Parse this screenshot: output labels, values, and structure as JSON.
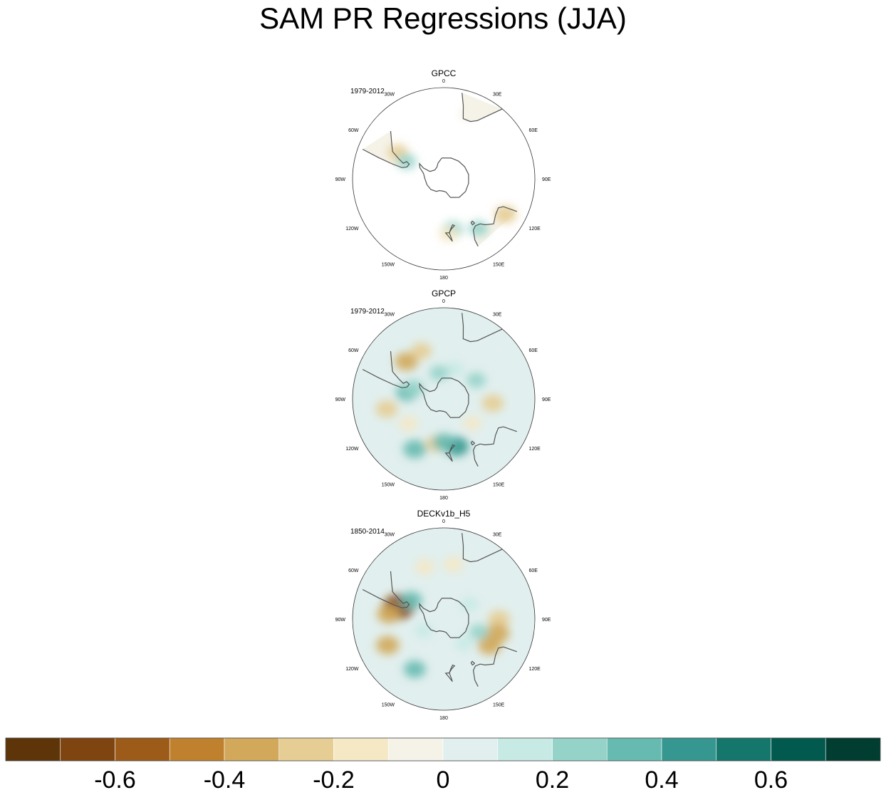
{
  "title": "SAM PR Regressions (JJA)",
  "chart_data": {
    "type": "polar-contour-map",
    "projection": "south-polar-stereographic",
    "longitude_labels": [
      "0",
      "30E",
      "60E",
      "90E",
      "120E",
      "150E",
      "180",
      "150W",
      "120W",
      "90W",
      "60W",
      "30W"
    ],
    "panels": [
      {
        "name": "GPCC",
        "period": "1979-2012",
        "coverage": "land-only",
        "anomalies": [
          {
            "lon": -60,
            "lat": -42,
            "value": -0.25
          },
          {
            "lon": -65,
            "lat": -52,
            "value": 0.2
          },
          {
            "lon": 20,
            "lat": -30,
            "value": -0.1
          },
          {
            "lon": 120,
            "lat": -28,
            "value": -0.3
          },
          {
            "lon": 145,
            "lat": -36,
            "value": 0.2
          },
          {
            "lon": 170,
            "lat": -43,
            "value": 0.25
          },
          {
            "lon": 175,
            "lat": -40,
            "value": -0.2
          }
        ]
      },
      {
        "name": "GPCP",
        "period": "1979-2012",
        "coverage": "global",
        "anomalies": [
          {
            "lon": -45,
            "lat": -42,
            "value": -0.35
          },
          {
            "lon": -25,
            "lat": -42,
            "value": -0.25
          },
          {
            "lon": -80,
            "lat": -55,
            "value": 0.3
          },
          {
            "lon": -70,
            "lat": -60,
            "value": 0.25
          },
          {
            "lon": -100,
            "lat": -38,
            "value": -0.3
          },
          {
            "lon": -125,
            "lat": -50,
            "value": -0.2
          },
          {
            "lon": -150,
            "lat": -38,
            "value": 0.35
          },
          {
            "lon": -170,
            "lat": -48,
            "value": -0.25
          },
          {
            "lon": 165,
            "lat": -45,
            "value": 0.4
          },
          {
            "lon": 180,
            "lat": -50,
            "value": 0.3
          },
          {
            "lon": 95,
            "lat": -45,
            "value": -0.3
          },
          {
            "lon": 60,
            "lat": -55,
            "value": 0.2
          },
          {
            "lon": 20,
            "lat": -60,
            "value": 0.15
          },
          {
            "lon": -10,
            "lat": -65,
            "value": 0.2
          },
          {
            "lon": 130,
            "lat": -55,
            "value": -0.15
          }
        ]
      },
      {
        "name": "DECKv1b_H5",
        "period": "1850-2014",
        "coverage": "global",
        "anomalies": [
          {
            "lon": -75,
            "lat": -47,
            "value": -0.7
          },
          {
            "lon": -85,
            "lat": -40,
            "value": -0.35
          },
          {
            "lon": -115,
            "lat": -35,
            "value": -0.35
          },
          {
            "lon": -20,
            "lat": -40,
            "value": -0.2
          },
          {
            "lon": 10,
            "lat": -40,
            "value": -0.2
          },
          {
            "lon": 90,
            "lat": -40,
            "value": -0.3
          },
          {
            "lon": 105,
            "lat": -40,
            "value": -0.4
          },
          {
            "lon": 120,
            "lat": -42,
            "value": -0.35
          },
          {
            "lon": 110,
            "lat": -55,
            "value": 0.2
          },
          {
            "lon": 140,
            "lat": -60,
            "value": 0.15
          },
          {
            "lon": -150,
            "lat": -38,
            "value": 0.3
          },
          {
            "lon": -60,
            "lat": -55,
            "value": 0.3
          },
          {
            "lon": 60,
            "lat": -62,
            "value": 0.15
          },
          {
            "lon": -120,
            "lat": -68,
            "value": 0.15
          }
        ]
      }
    ],
    "colorbar": {
      "levels": [
        -0.7,
        -0.6,
        -0.5,
        -0.4,
        -0.3,
        -0.2,
        -0.1,
        0,
        0.1,
        0.2,
        0.3,
        0.4,
        0.5,
        0.6,
        0.7
      ],
      "colors": [
        "#5e3509",
        "#7f4510",
        "#9c5b18",
        "#bf812d",
        "#d2a85a",
        "#e6cd93",
        "#f4e8c5",
        "#f5f2e8",
        "#e1efee",
        "#c7eae5",
        "#95d3c9",
        "#66bab0",
        "#35978f",
        "#15766b",
        "#015a4d",
        "#013d30"
      ],
      "tick_labels": [
        "-0.6",
        "-0.4",
        "-0.2",
        "0",
        "0.2",
        "0.4",
        "0.6"
      ],
      "tick_values": [
        -0.6,
        -0.4,
        -0.2,
        0,
        0.2,
        0.4,
        0.6
      ]
    }
  }
}
